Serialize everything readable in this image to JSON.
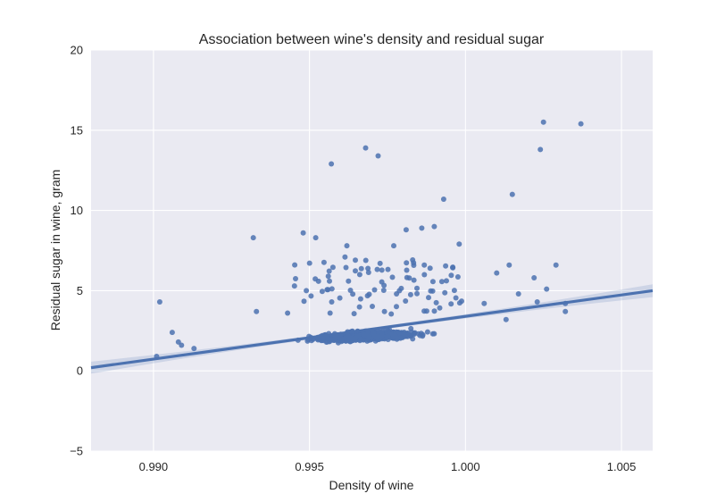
{
  "chart_data": {
    "type": "scatter",
    "title": "Association between wine's density and residual sugar",
    "xlabel": "Density of wine",
    "ylabel": "Residual sugar in wine, gram",
    "xlim": [
      0.988,
      1.006
    ],
    "ylim": [
      -5,
      20
    ],
    "xticks": [
      0.99,
      0.995,
      1.0,
      1.005
    ],
    "xtick_labels": [
      "0.990",
      "0.995",
      "1.000",
      "1.005"
    ],
    "yticks": [
      -5,
      0,
      5,
      10,
      15,
      20
    ],
    "ytick_labels": [
      "−5",
      "0",
      "5",
      "10",
      "15",
      "20"
    ],
    "grid": true,
    "colors": {
      "background": "#eaeaf2",
      "grid": "#ffffff",
      "points": "#4c72b0",
      "line": "#4c72b0",
      "ci_band": "#4c72b0"
    },
    "regression": {
      "x": [
        0.988,
        1.006
      ],
      "y": [
        0.2,
        5.0
      ],
      "ci_half_width_ends": 0.4,
      "ci_half_width_center": 0.1
    },
    "outliers": [
      {
        "x": 0.9901,
        "y": 0.9
      },
      {
        "x": 0.9902,
        "y": 4.3
      },
      {
        "x": 0.9906,
        "y": 2.4
      },
      {
        "x": 0.9908,
        "y": 1.8
      },
      {
        "x": 0.9909,
        "y": 1.6
      },
      {
        "x": 0.9913,
        "y": 1.4
      },
      {
        "x": 0.9932,
        "y": 8.3
      },
      {
        "x": 0.9933,
        "y": 3.7
      },
      {
        "x": 0.9943,
        "y": 3.6
      },
      {
        "x": 0.9948,
        "y": 8.6
      },
      {
        "x": 0.9949,
        "y": 5.0
      },
      {
        "x": 0.9952,
        "y": 8.3
      },
      {
        "x": 0.9957,
        "y": 12.9
      },
      {
        "x": 0.9962,
        "y": 7.8
      },
      {
        "x": 0.9968,
        "y": 13.9
      },
      {
        "x": 0.9972,
        "y": 13.4
      },
      {
        "x": 0.9977,
        "y": 7.8
      },
      {
        "x": 0.9981,
        "y": 8.8
      },
      {
        "x": 0.9986,
        "y": 8.9
      },
      {
        "x": 0.999,
        "y": 9.0
      },
      {
        "x": 0.9993,
        "y": 10.7
      },
      {
        "x": 0.9998,
        "y": 7.9
      },
      {
        "x": 1.0006,
        "y": 4.2
      },
      {
        "x": 1.001,
        "y": 6.1
      },
      {
        "x": 1.0013,
        "y": 3.2
      },
      {
        "x": 1.0014,
        "y": 6.6
      },
      {
        "x": 1.0015,
        "y": 11.0
      },
      {
        "x": 1.0017,
        "y": 4.8
      },
      {
        "x": 1.0022,
        "y": 5.8
      },
      {
        "x": 1.0023,
        "y": 4.3
      },
      {
        "x": 1.0024,
        "y": 13.8
      },
      {
        "x": 1.0025,
        "y": 15.5
      },
      {
        "x": 1.0026,
        "y": 5.1
      },
      {
        "x": 1.0029,
        "y": 6.6
      },
      {
        "x": 1.0032,
        "y": 4.2
      },
      {
        "x": 1.0032,
        "y": 3.7
      },
      {
        "x": 1.0037,
        "y": 15.4
      }
    ]
  }
}
